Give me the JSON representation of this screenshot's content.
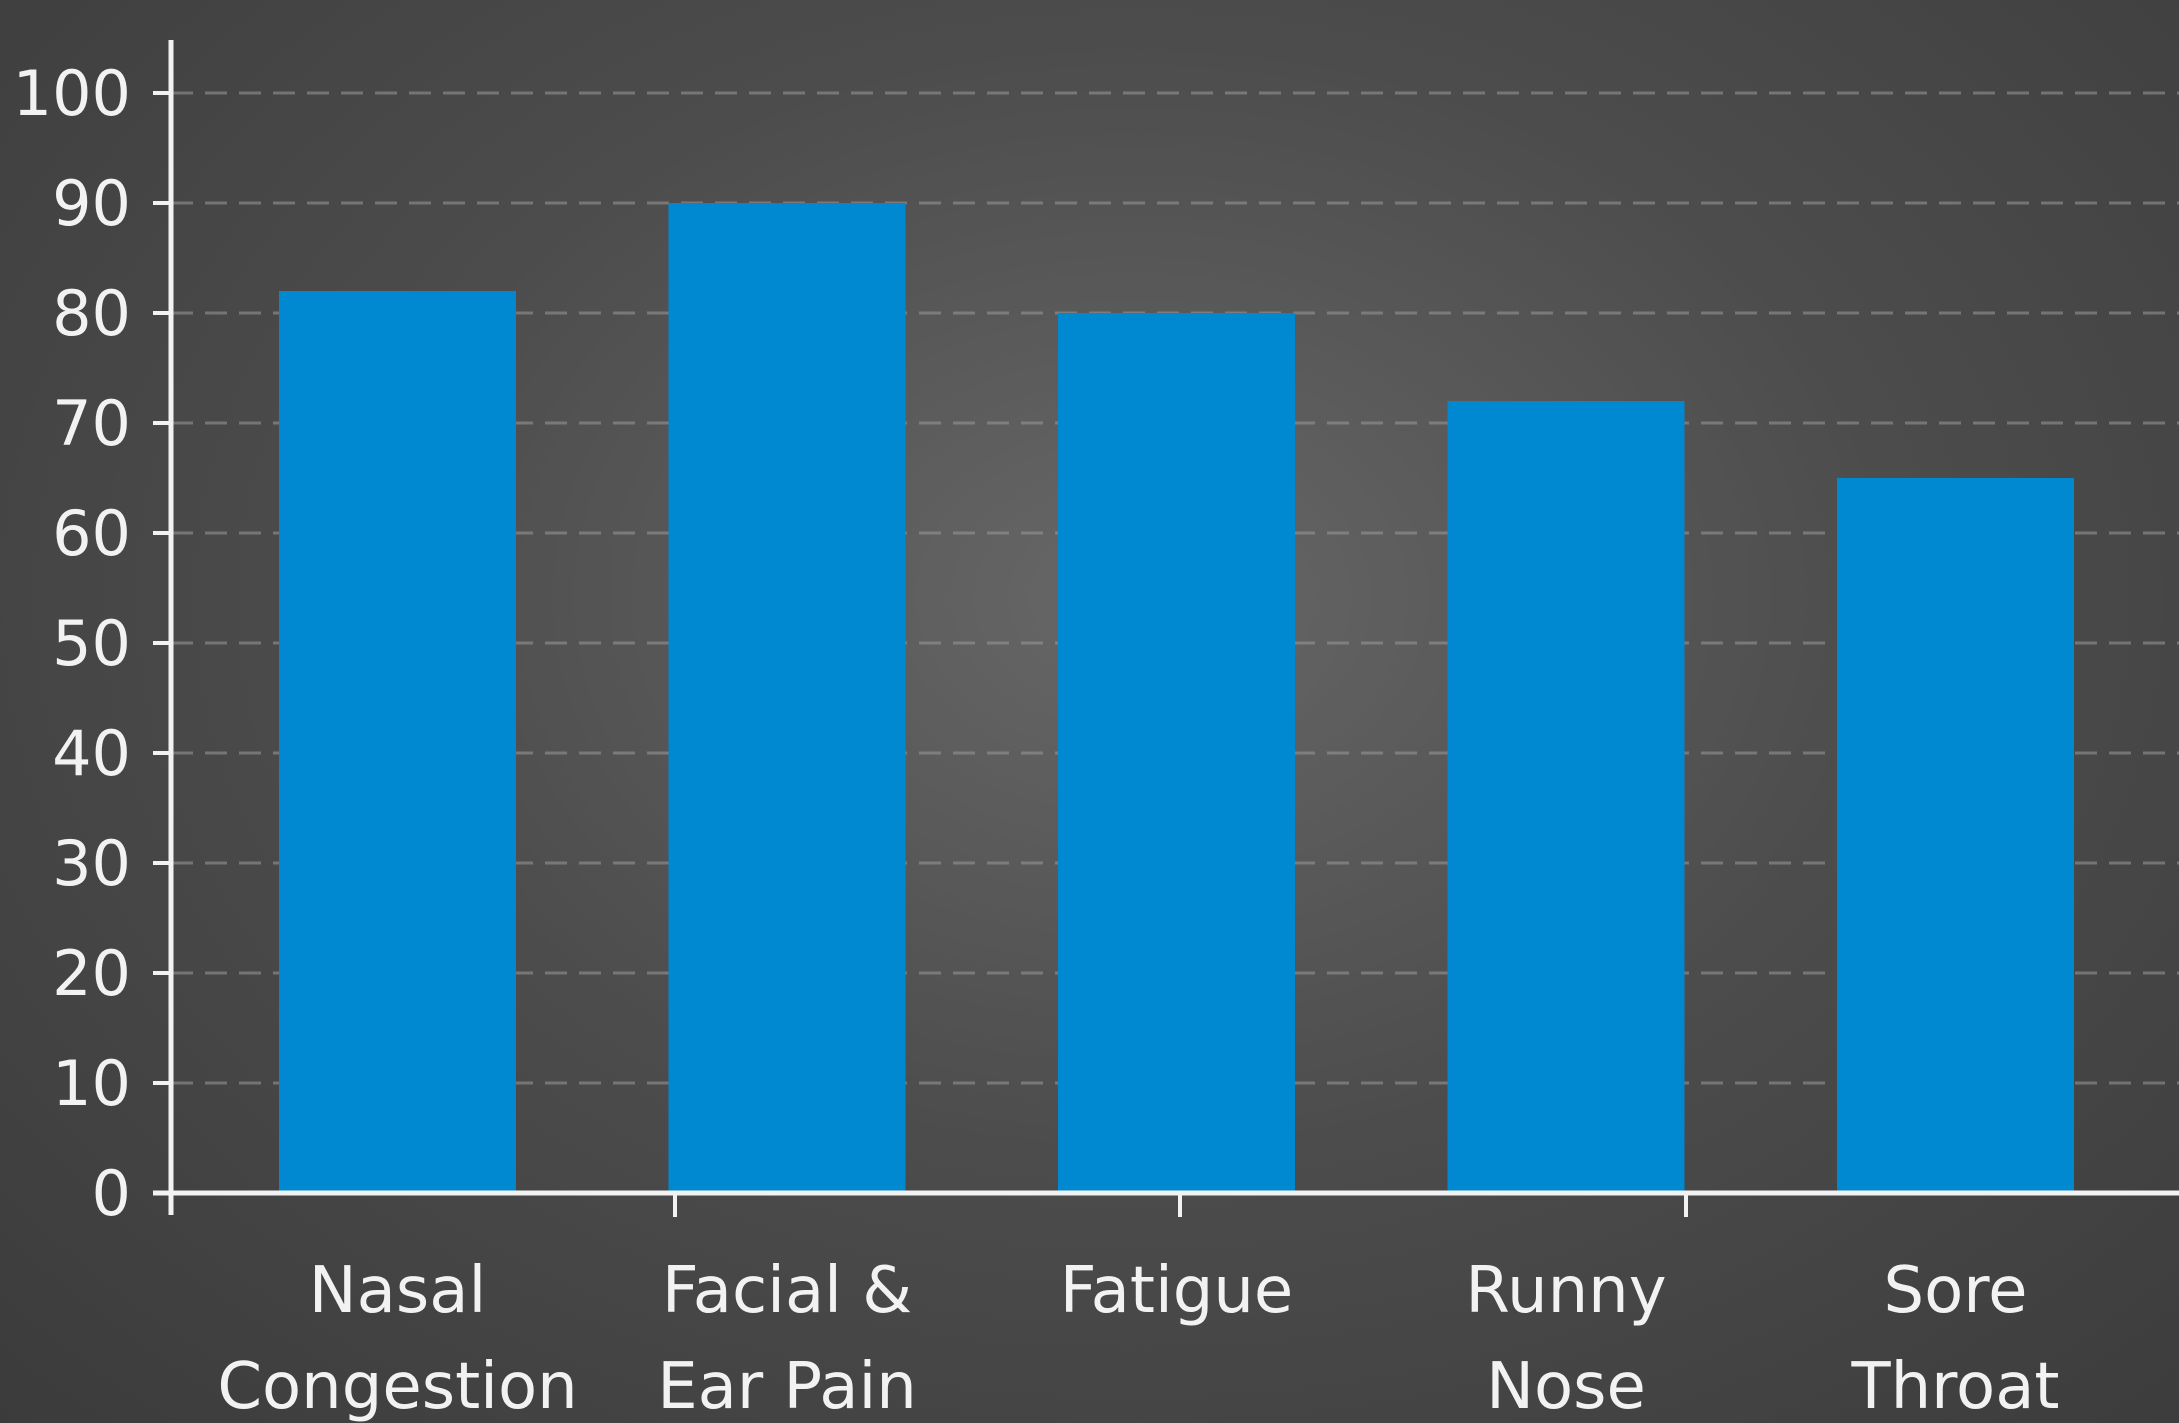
{
  "chart_data": {
    "type": "bar",
    "title": "",
    "xlabel": "",
    "ylabel": "",
    "categories": [
      [
        "Nasal",
        "Congestion"
      ],
      [
        "Facial &",
        "Ear Pain"
      ],
      [
        "Fatigue"
      ],
      [
        "Runny",
        "Nose"
      ],
      [
        "Sore",
        "Throat"
      ]
    ],
    "values": [
      82,
      90,
      80,
      72,
      65
    ],
    "ylim": [
      0,
      100
    ],
    "yticks": [
      0,
      10,
      20,
      30,
      40,
      50,
      60,
      70,
      80,
      90,
      100
    ],
    "grid": true,
    "legend": "none"
  },
  "colors": {
    "bar": "#0089d0",
    "axis": "#f2f2f2",
    "grid": "#9a9a9a",
    "text": "#f2f2f2"
  }
}
